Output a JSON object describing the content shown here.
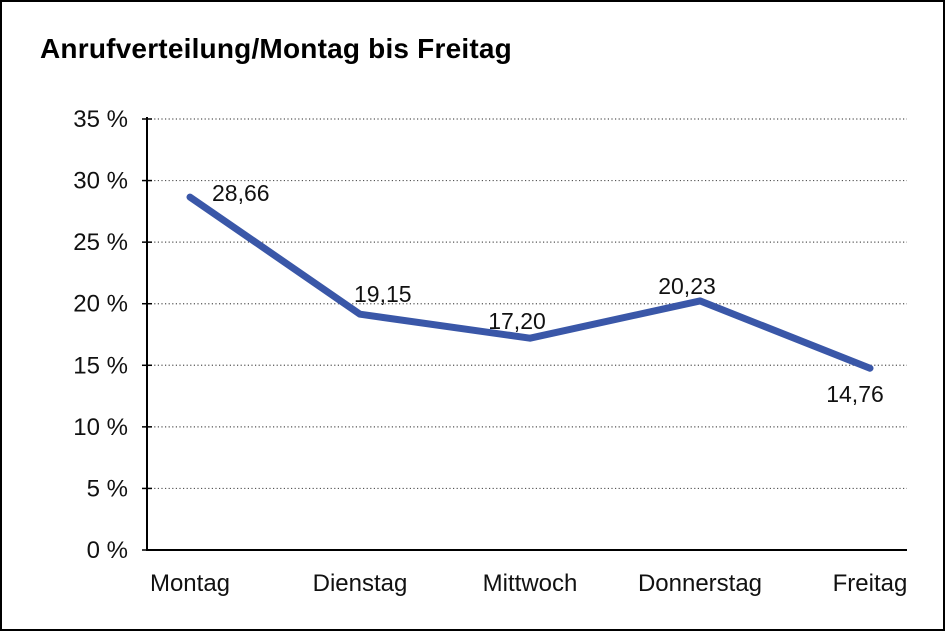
{
  "title": "Anrufverteilung/Montag bis Freitag",
  "chart_data": {
    "type": "line",
    "title": "Anrufverteilung/Montag bis Freitag",
    "categories": [
      "Montag",
      "Dienstag",
      "Mittwoch",
      "Donnerstag",
      "Freitag"
    ],
    "values": [
      28.66,
      19.15,
      17.2,
      20.23,
      14.76
    ],
    "value_labels": [
      "28,66",
      "19,15",
      "17,20",
      "20,23",
      "14,76"
    ],
    "xlabel": "",
    "ylabel": "",
    "ylim": [
      0,
      35
    ],
    "ytick_step": 5,
    "ytick_labels": [
      "0 %",
      "5 %",
      "10 %",
      "15 %",
      "20 %",
      "25 %",
      "30 %",
      "35 %"
    ],
    "grid": "horizontal-dotted",
    "legend_position": "none"
  },
  "colors": {
    "line": "#3A57A8",
    "grid": "#555555",
    "axis": "#000000",
    "text": "#111111",
    "background": "#FFFFFF",
    "border": "#000000"
  }
}
